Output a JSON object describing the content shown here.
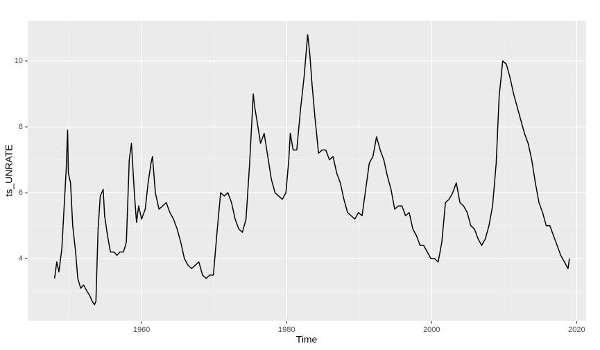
{
  "chart_data": {
    "type": "line",
    "x_label": "Time",
    "y_label": "ts_UNRATE",
    "x": [
      1948.0,
      1948.3,
      1948.6,
      1949.0,
      1949.4,
      1949.6,
      1949.8,
      1949.9,
      1950.2,
      1950.5,
      1950.9,
      1951.2,
      1951.6,
      1952.0,
      1952.5,
      1952.8,
      1953.2,
      1953.5,
      1953.7,
      1954.0,
      1954.3,
      1954.7,
      1954.9,
      1955.3,
      1955.7,
      1956.2,
      1956.6,
      1957.0,
      1957.5,
      1957.9,
      1958.3,
      1958.6,
      1959.0,
      1959.3,
      1959.6,
      1960.0,
      1960.5,
      1960.9,
      1961.3,
      1961.5,
      1961.9,
      1962.4,
      1962.9,
      1963.4,
      1963.9,
      1964.4,
      1964.9,
      1965.4,
      1965.9,
      1966.4,
      1966.9,
      1967.4,
      1967.9,
      1968.4,
      1968.9,
      1969.4,
      1969.9,
      1970.4,
      1970.9,
      1971.4,
      1971.9,
      1972.4,
      1972.9,
      1973.4,
      1973.9,
      1974.4,
      1974.9,
      1975.4,
      1975.6,
      1975.9,
      1976.4,
      1976.9,
      1977.4,
      1977.9,
      1978.4,
      1978.9,
      1979.4,
      1979.9,
      1980.3,
      1980.5,
      1980.9,
      1981.4,
      1981.9,
      1982.4,
      1982.9,
      1983.2,
      1983.5,
      1983.9,
      1984.4,
      1984.9,
      1985.4,
      1985.9,
      1986.4,
      1986.9,
      1987.4,
      1987.9,
      1988.4,
      1988.9,
      1989.4,
      1989.9,
      1990.4,
      1990.9,
      1991.4,
      1991.9,
      1992.4,
      1992.9,
      1993.4,
      1993.9,
      1994.4,
      1994.9,
      1995.4,
      1995.9,
      1996.4,
      1996.9,
      1997.4,
      1997.9,
      1998.4,
      1998.9,
      1999.4,
      1999.9,
      2000.4,
      2000.9,
      2001.4,
      2001.9,
      2002.4,
      2002.9,
      2003.4,
      2003.9,
      2004.4,
      2004.9,
      2005.4,
      2005.9,
      2006.4,
      2006.9,
      2007.4,
      2007.9,
      2008.4,
      2008.9,
      2009.3,
      2009.8,
      2010.3,
      2010.8,
      2011.3,
      2011.8,
      2012.3,
      2012.8,
      2013.3,
      2013.8,
      2014.3,
      2014.8,
      2015.3,
      2015.8,
      2016.3,
      2016.8,
      2017.3,
      2017.8,
      2018.3,
      2018.8,
      2019.0
    ],
    "series": [
      {
        "color": "#000000",
        "values": [
          3.4,
          3.9,
          3.6,
          4.3,
          5.9,
          6.7,
          7.9,
          6.6,
          6.3,
          5.0,
          4.2,
          3.4,
          3.1,
          3.2,
          3.0,
          2.9,
          2.7,
          2.6,
          2.7,
          4.9,
          5.9,
          6.1,
          5.3,
          4.7,
          4.2,
          4.2,
          4.1,
          4.2,
          4.2,
          4.5,
          7.0,
          7.5,
          6.0,
          5.1,
          5.6,
          5.2,
          5.5,
          6.3,
          6.9,
          7.1,
          6.0,
          5.5,
          5.6,
          5.7,
          5.4,
          5.2,
          4.9,
          4.5,
          4.0,
          3.8,
          3.7,
          3.8,
          3.9,
          3.5,
          3.4,
          3.5,
          3.5,
          4.8,
          6.0,
          5.9,
          6.0,
          5.7,
          5.2,
          4.9,
          4.8,
          5.2,
          6.9,
          9.0,
          8.6,
          8.2,
          7.5,
          7.8,
          7.1,
          6.4,
          6.0,
          5.9,
          5.8,
          6.0,
          7.0,
          7.8,
          7.3,
          7.3,
          8.5,
          9.5,
          10.8,
          10.2,
          9.3,
          8.3,
          7.2,
          7.3,
          7.3,
          7.0,
          7.1,
          6.6,
          6.3,
          5.8,
          5.4,
          5.3,
          5.2,
          5.4,
          5.3,
          6.1,
          6.9,
          7.1,
          7.7,
          7.3,
          7.0,
          6.5,
          6.1,
          5.5,
          5.6,
          5.6,
          5.3,
          5.4,
          4.9,
          4.7,
          4.4,
          4.4,
          4.2,
          4.0,
          4.0,
          3.9,
          4.5,
          5.7,
          5.8,
          6.0,
          6.3,
          5.7,
          5.6,
          5.4,
          5.0,
          4.9,
          4.6,
          4.4,
          4.6,
          5.0,
          5.6,
          6.9,
          8.9,
          10.0,
          9.9,
          9.5,
          9.0,
          8.6,
          8.2,
          7.8,
          7.5,
          7.0,
          6.3,
          5.7,
          5.4,
          5.0,
          5.0,
          4.7,
          4.4,
          4.1,
          3.9,
          3.7,
          4.0
        ]
      }
    ],
    "xlim": [
      1944.3,
      2021.3
    ],
    "ylim": [
      2.11,
      11.22
    ],
    "xticks": [
      1960,
      1980,
      2000,
      2020
    ],
    "yticks": [
      4,
      6,
      8,
      10
    ],
    "x_minor_ticks": [
      1950,
      1970,
      1990,
      2010
    ],
    "y_minor_ticks": [
      3,
      5,
      7,
      9,
      11
    ],
    "grid": true
  }
}
